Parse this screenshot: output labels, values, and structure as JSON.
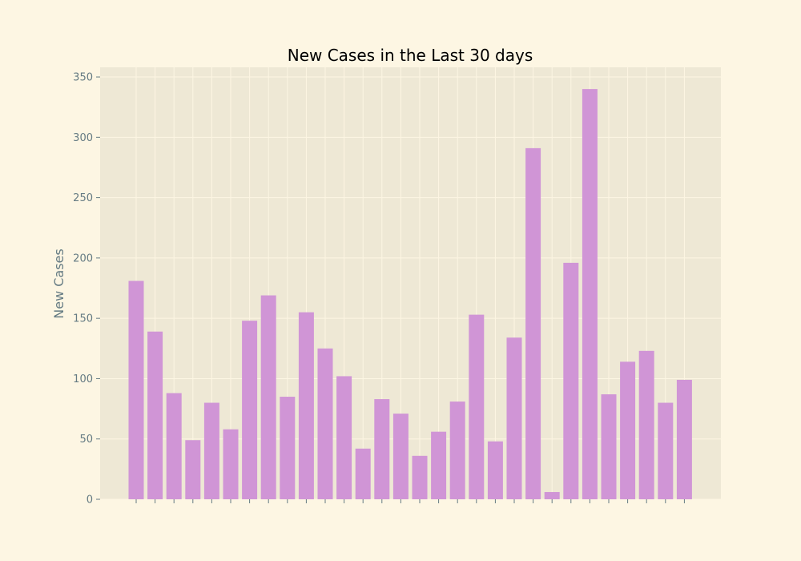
{
  "chart_data": {
    "type": "bar",
    "title": "New Cases in the Last 30 days",
    "xlabel": "",
    "ylabel": "New Cases",
    "ylim": [
      0,
      358
    ],
    "yticks": [
      0,
      50,
      100,
      150,
      200,
      250,
      300,
      350
    ],
    "values": [
      181,
      139,
      88,
      49,
      80,
      58,
      148,
      169,
      85,
      155,
      125,
      102,
      42,
      83,
      71,
      36,
      56,
      81,
      153,
      48,
      134,
      291,
      6,
      196,
      340,
      87,
      114,
      123,
      80,
      99
    ],
    "grid": true,
    "legend": "none"
  },
  "colors": {
    "background": "#fdf6e3",
    "plot_background": "#eee8d5",
    "bar": "#d095d6",
    "grid": "#fdf6e3",
    "text": "#657b83",
    "title": "#000000"
  }
}
